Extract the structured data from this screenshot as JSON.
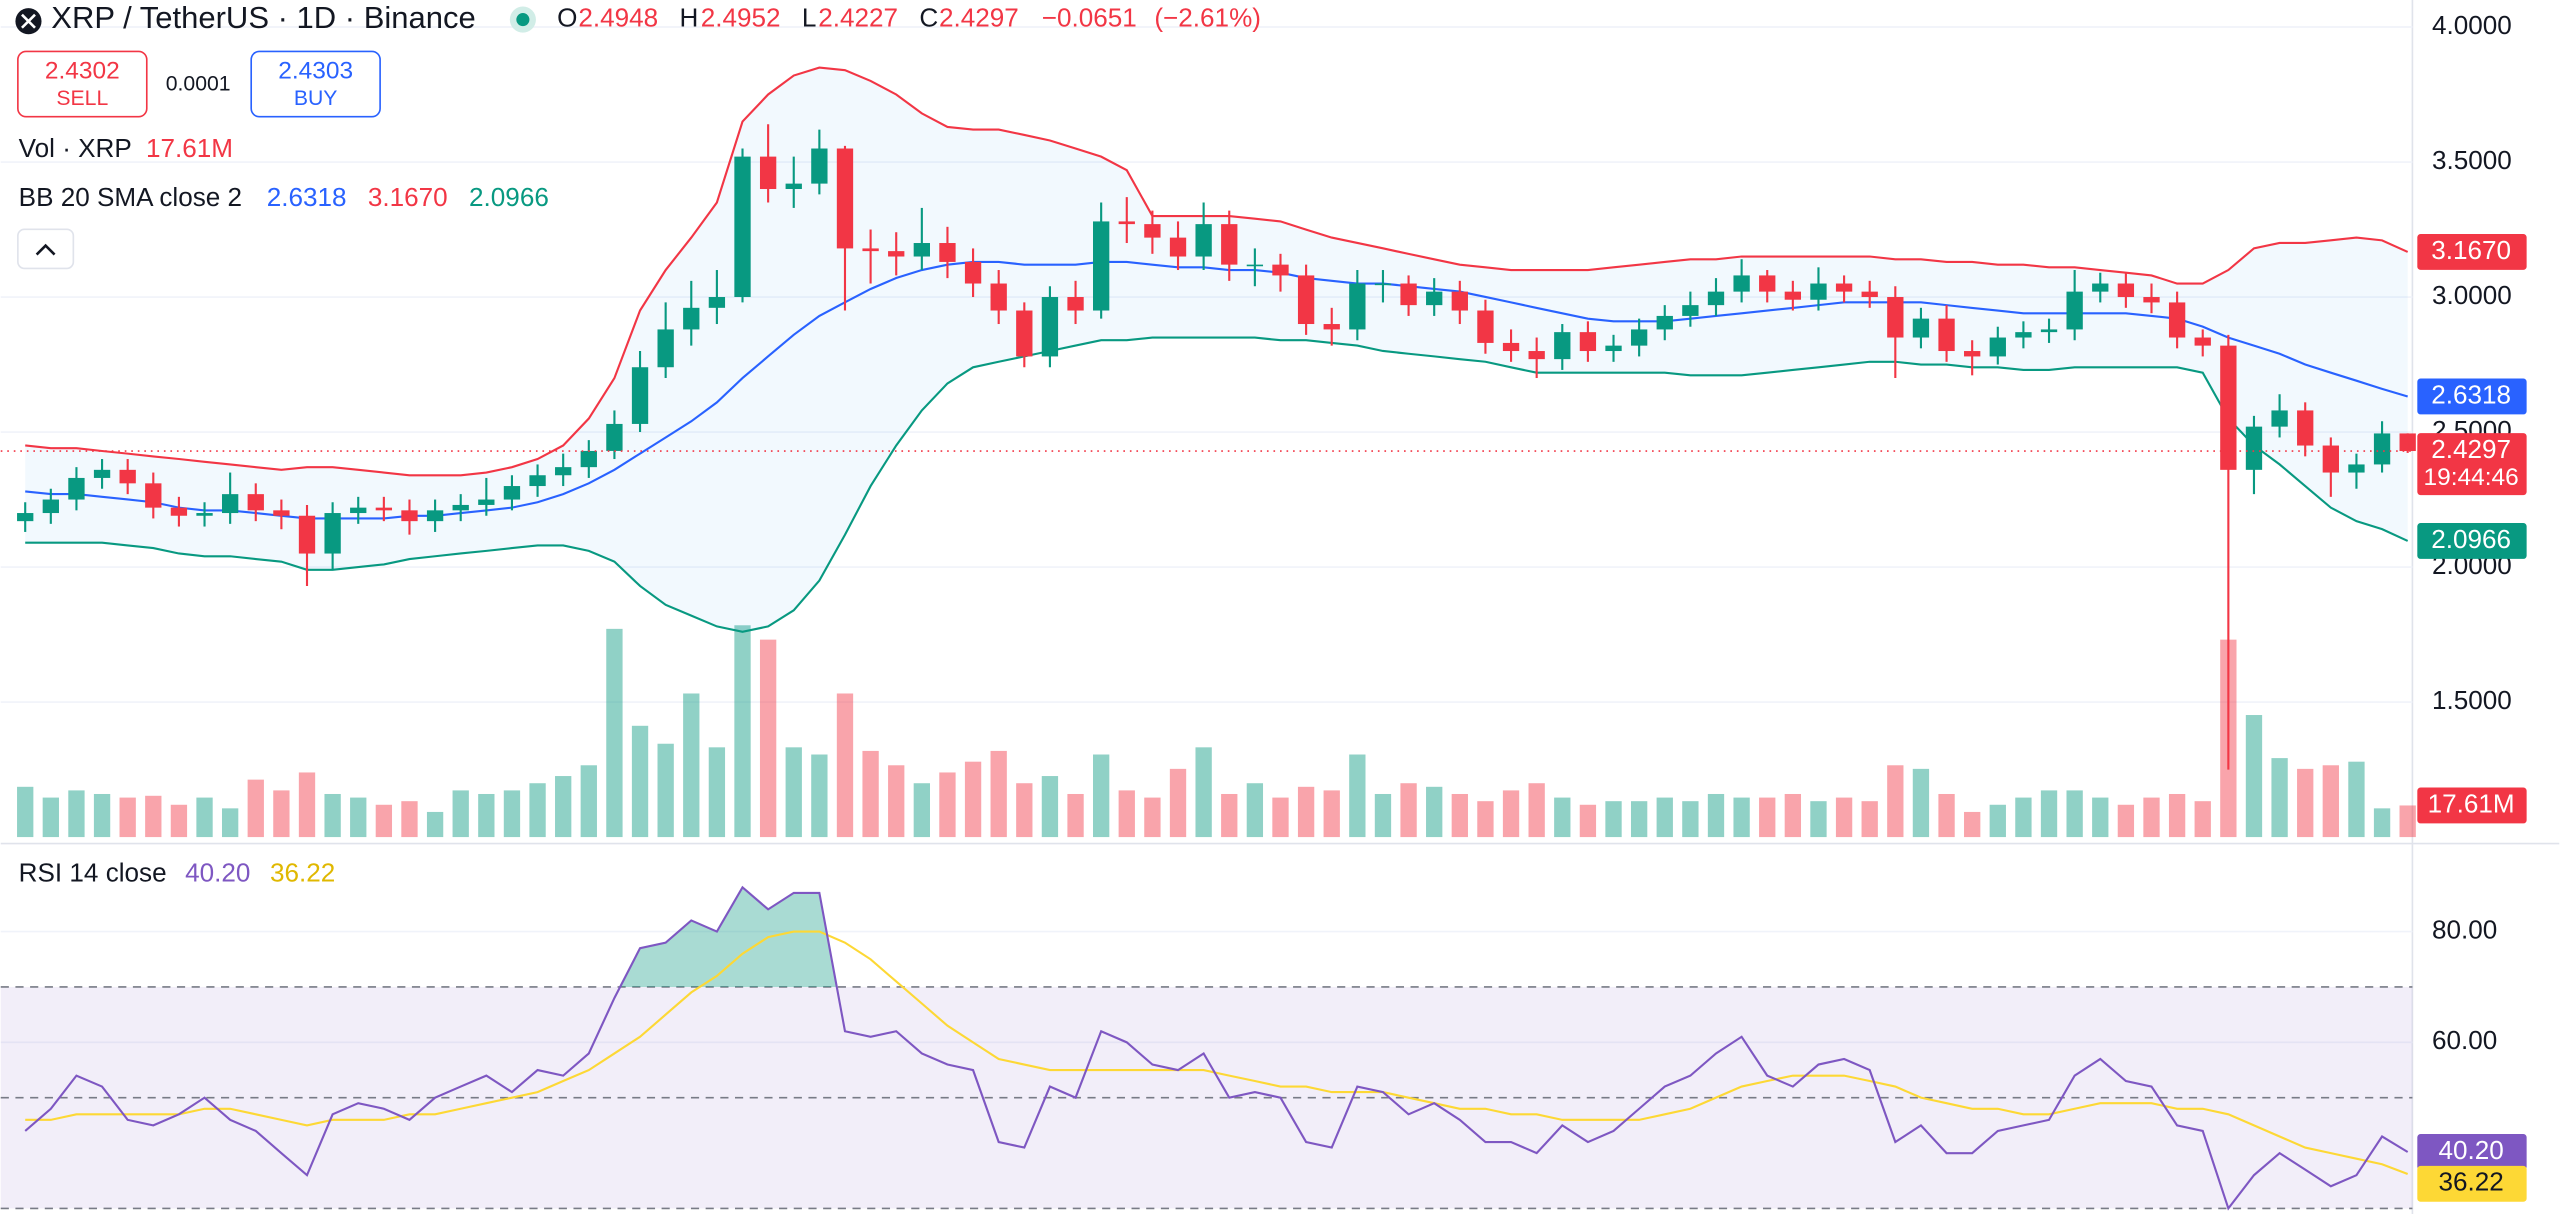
{
  "chart_data": {
    "type": "candlestick",
    "title": "XRP / TetherUS · 1D · Binance",
    "ohlc_labels": [
      "O",
      "H",
      "L",
      "C"
    ],
    "ohlc_values": [
      2.4948,
      2.4952,
      2.4227,
      2.4297
    ],
    "change": {
      "value": -0.0651,
      "label": "−0.0651"
    },
    "change_pct": {
      "value": -2.61,
      "label": "(−2.61%)"
    },
    "sell": {
      "price": 2.4302,
      "label": "SELL"
    },
    "spread": 0.0001,
    "buy": {
      "price": 2.4303,
      "label": "BUY"
    },
    "countdown": "19:44:46",
    "up_color": "#089981",
    "down_color": "#f23645",
    "ylim": [
      1.0,
      4.1
    ],
    "yticks": [
      {
        "value": 4,
        "label": "4.0000"
      },
      {
        "value": 3.5,
        "label": "3.5000"
      },
      {
        "value": 3,
        "label": "3.0000"
      },
      {
        "value": 2.5,
        "label": "2.5000"
      },
      {
        "value": 2,
        "label": "2.0000"
      },
      {
        "value": 1.5,
        "label": "1.5000"
      }
    ],
    "grid": true,
    "open": [
      2.17,
      2.2,
      2.25,
      2.33,
      2.36,
      2.31,
      2.22,
      2.19,
      2.2,
      2.27,
      2.21,
      2.19,
      2.05,
      2.2,
      2.22,
      2.21,
      2.17,
      2.21,
      2.23,
      2.25,
      2.3,
      2.34,
      2.37,
      2.43,
      2.53,
      2.74,
      2.88,
      2.96,
      3.0,
      3.52,
      3.4,
      3.42,
      3.55,
      3.18,
      3.17,
      3.15,
      3.2,
      3.13,
      3.05,
      2.95,
      2.78,
      3.0,
      2.95,
      3.28,
      3.27,
      3.22,
      3.15,
      3.27,
      3.12,
      3.12,
      3.08,
      2.9,
      2.88,
      3.05,
      3.05,
      2.97,
      3.02,
      2.95,
      2.83,
      2.8,
      2.77,
      2.87,
      2.8,
      2.82,
      2.88,
      2.93,
      2.97,
      3.02,
      3.08,
      3.02,
      2.99,
      3.05,
      3.02,
      3.0,
      2.85,
      2.92,
      2.8,
      2.78,
      2.85,
      2.87,
      2.88,
      3.02,
      3.05,
      3.0,
      2.98,
      2.85,
      2.82,
      2.36,
      2.52,
      2.58,
      2.45,
      2.35,
      2.38,
      2.4948
    ],
    "high": [
      2.24,
      2.29,
      2.37,
      2.4,
      2.4,
      2.35,
      2.26,
      2.24,
      2.35,
      2.31,
      2.25,
      2.23,
      2.24,
      2.26,
      2.26,
      2.25,
      2.25,
      2.27,
      2.33,
      2.34,
      2.38,
      2.42,
      2.47,
      2.58,
      2.8,
      2.98,
      3.06,
      3.1,
      3.55,
      3.64,
      3.52,
      3.62,
      3.56,
      3.25,
      3.24,
      3.33,
      3.26,
      3.18,
      3.1,
      2.98,
      3.04,
      3.06,
      3.35,
      3.37,
      3.32,
      3.28,
      3.35,
      3.32,
      3.18,
      3.16,
      3.12,
      2.96,
      3.1,
      3.1,
      3.08,
      3.07,
      3.06,
      2.99,
      2.88,
      2.85,
      2.9,
      2.91,
      2.86,
      2.92,
      2.97,
      3.02,
      3.07,
      3.14,
      3.1,
      3.06,
      3.11,
      3.08,
      3.06,
      3.04,
      2.96,
      2.97,
      2.84,
      2.89,
      2.91,
      2.92,
      3.1,
      3.09,
      3.09,
      3.05,
      3.02,
      2.88,
      2.86,
      2.56,
      2.64,
      2.61,
      2.48,
      2.42,
      2.54,
      2.4952
    ],
    "low": [
      2.13,
      2.16,
      2.21,
      2.29,
      2.27,
      2.18,
      2.15,
      2.15,
      2.16,
      2.17,
      2.14,
      1.93,
      1.99,
      2.16,
      2.17,
      2.12,
      2.13,
      2.17,
      2.19,
      2.21,
      2.26,
      2.3,
      2.33,
      2.4,
      2.5,
      2.7,
      2.82,
      2.9,
      2.98,
      3.35,
      3.33,
      3.38,
      2.95,
      3.05,
      3.08,
      3.1,
      3.07,
      3.0,
      2.9,
      2.74,
      2.74,
      2.9,
      2.92,
      3.2,
      3.16,
      3.1,
      3.1,
      3.06,
      3.04,
      3.02,
      2.86,
      2.82,
      2.84,
      2.98,
      2.93,
      2.93,
      2.9,
      2.79,
      2.76,
      2.7,
      2.73,
      2.76,
      2.76,
      2.78,
      2.84,
      2.89,
      2.93,
      2.98,
      2.98,
      2.95,
      2.95,
      2.98,
      2.96,
      2.7,
      2.81,
      2.76,
      2.71,
      2.75,
      2.81,
      2.83,
      2.84,
      2.98,
      2.96,
      2.94,
      2.81,
      2.78,
      1.25,
      2.27,
      2.48,
      2.41,
      2.26,
      2.29,
      2.35,
      2.4227
    ],
    "close": [
      2.2,
      2.25,
      2.33,
      2.36,
      2.31,
      2.22,
      2.19,
      2.2,
      2.27,
      2.21,
      2.19,
      2.05,
      2.2,
      2.22,
      2.21,
      2.17,
      2.21,
      2.23,
      2.25,
      2.3,
      2.34,
      2.37,
      2.43,
      2.53,
      2.74,
      2.88,
      2.96,
      3.0,
      3.52,
      3.4,
      3.42,
      3.55,
      3.18,
      3.17,
      3.15,
      3.2,
      3.13,
      3.05,
      2.95,
      2.78,
      3.0,
      2.95,
      3.28,
      3.27,
      3.22,
      3.15,
      3.27,
      3.12,
      3.12,
      3.08,
      2.9,
      2.88,
      3.05,
      3.05,
      2.97,
      3.02,
      2.95,
      2.83,
      2.8,
      2.77,
      2.87,
      2.8,
      2.82,
      2.88,
      2.93,
      2.97,
      3.02,
      3.08,
      3.02,
      2.99,
      3.05,
      3.02,
      3.0,
      2.85,
      2.92,
      2.8,
      2.78,
      2.85,
      2.87,
      2.88,
      3.02,
      3.05,
      3.0,
      2.98,
      2.85,
      2.82,
      2.36,
      2.52,
      2.58,
      2.45,
      2.35,
      2.38,
      2.4948,
      2.4297
    ],
    "volume": {
      "label": "Vol · XRP",
      "legend_value": {
        "value": 17.61,
        "label": "17.61M"
      },
      "vlim": [
        0,
        120
      ],
      "values": [
        28,
        22,
        26,
        24,
        22,
        23,
        18,
        22,
        16,
        32,
        26,
        36,
        24,
        22,
        18,
        20,
        14,
        26,
        24,
        26,
        30,
        34,
        40,
        116,
        62,
        52,
        80,
        50,
        118,
        110,
        50,
        46,
        80,
        48,
        40,
        30,
        36,
        42,
        48,
        30,
        34,
        24,
        46,
        26,
        22,
        38,
        50,
        24,
        30,
        22,
        28,
        26,
        46,
        24,
        30,
        28,
        24,
        20,
        26,
        30,
        22,
        18,
        20,
        20,
        22,
        20,
        24,
        22,
        22,
        24,
        20,
        22,
        20,
        40,
        38,
        24,
        14,
        18,
        22,
        26,
        26,
        22,
        18,
        22,
        24,
        20,
        110,
        68,
        44,
        38,
        40,
        42,
        16,
        17.61
      ]
    },
    "bb": {
      "label": "BB 20 SMA close 2",
      "fill": "rgba(33,150,243,0.06)",
      "legend_values": [
        2.6318,
        {
          "value": 3.167,
          "label": "3.1670"
        },
        2.0966
      ],
      "colors": [
        "#2962ff",
        "#f23645",
        "#089981"
      ],
      "middle": [
        2.28,
        2.27,
        2.27,
        2.26,
        2.25,
        2.24,
        2.22,
        2.21,
        2.21,
        2.2,
        2.19,
        2.18,
        2.18,
        2.18,
        2.18,
        2.19,
        2.19,
        2.2,
        2.21,
        2.22,
        2.24,
        2.27,
        2.31,
        2.36,
        2.42,
        2.48,
        2.54,
        2.61,
        2.7,
        2.78,
        2.86,
        2.93,
        2.98,
        3.03,
        3.07,
        3.1,
        3.12,
        3.13,
        3.13,
        3.12,
        3.12,
        3.12,
        3.13,
        3.13,
        3.12,
        3.11,
        3.11,
        3.1,
        3.1,
        3.09,
        3.07,
        3.06,
        3.05,
        3.05,
        3.04,
        3.03,
        3.02,
        3.0,
        2.98,
        2.96,
        2.94,
        2.92,
        2.91,
        2.91,
        2.91,
        2.92,
        2.93,
        2.94,
        2.95,
        2.96,
        2.97,
        2.98,
        2.98,
        2.98,
        2.98,
        2.97,
        2.96,
        2.95,
        2.94,
        2.94,
        2.94,
        2.94,
        2.94,
        2.93,
        2.92,
        2.89,
        2.85,
        2.82,
        2.79,
        2.75,
        2.72,
        2.69,
        2.66,
        2.6318
      ],
      "upper": [
        2.45,
        2.44,
        2.44,
        2.43,
        2.42,
        2.41,
        2.4,
        2.39,
        2.38,
        2.37,
        2.36,
        2.37,
        2.37,
        2.36,
        2.35,
        2.34,
        2.34,
        2.34,
        2.35,
        2.37,
        2.4,
        2.45,
        2.55,
        2.7,
        2.95,
        3.1,
        3.22,
        3.35,
        3.65,
        3.75,
        3.82,
        3.85,
        3.84,
        3.8,
        3.75,
        3.68,
        3.63,
        3.62,
        3.62,
        3.6,
        3.58,
        3.55,
        3.52,
        3.47,
        3.3,
        3.3,
        3.3,
        3.3,
        3.29,
        3.28,
        3.25,
        3.22,
        3.2,
        3.18,
        3.16,
        3.14,
        3.12,
        3.11,
        3.1,
        3.1,
        3.1,
        3.1,
        3.11,
        3.12,
        3.13,
        3.14,
        3.14,
        3.15,
        3.15,
        3.15,
        3.15,
        3.15,
        3.15,
        3.14,
        3.14,
        3.13,
        3.13,
        3.12,
        3.12,
        3.11,
        3.11,
        3.1,
        3.09,
        3.08,
        3.05,
        3.05,
        3.1,
        3.18,
        3.2,
        3.2,
        3.21,
        3.22,
        3.21,
        3.167
      ],
      "lower": [
        2.09,
        2.09,
        2.09,
        2.09,
        2.08,
        2.07,
        2.05,
        2.04,
        2.04,
        2.03,
        2.02,
        1.99,
        1.99,
        2.0,
        2.01,
        2.03,
        2.04,
        2.05,
        2.06,
        2.07,
        2.08,
        2.08,
        2.06,
        2.02,
        1.93,
        1.86,
        1.82,
        1.78,
        1.76,
        1.78,
        1.84,
        1.95,
        2.12,
        2.3,
        2.45,
        2.58,
        2.68,
        2.74,
        2.76,
        2.78,
        2.8,
        2.82,
        2.84,
        2.84,
        2.85,
        2.85,
        2.85,
        2.85,
        2.85,
        2.84,
        2.84,
        2.83,
        2.82,
        2.8,
        2.79,
        2.78,
        2.77,
        2.76,
        2.74,
        2.72,
        2.72,
        2.72,
        2.72,
        2.72,
        2.72,
        2.71,
        2.71,
        2.71,
        2.72,
        2.73,
        2.74,
        2.75,
        2.76,
        2.76,
        2.75,
        2.75,
        2.74,
        2.74,
        2.73,
        2.73,
        2.74,
        2.74,
        2.74,
        2.74,
        2.74,
        2.72,
        2.55,
        2.45,
        2.38,
        2.3,
        2.22,
        2.17,
        2.14,
        2.0966
      ]
    },
    "rsi": {
      "label": "RSI 14 close",
      "legend_values": [
        {
          "value": 40.2,
          "label": "40.20"
        },
        36.22
      ],
      "colors": [
        "#7e57c2",
        "#fdd835"
      ],
      "ylim": [
        29,
        95
      ],
      "yticks": [
        {
          "value": 80,
          "label": "80.00"
        },
        {
          "value": 60,
          "label": "60.00"
        }
      ],
      "band": [
        30,
        70
      ],
      "levels": [
        70,
        50,
        30
      ],
      "values": [
        44,
        48,
        54,
        52,
        46,
        45,
        47,
        50,
        46,
        44,
        40,
        36,
        47,
        49,
        48,
        46,
        50,
        52,
        54,
        51,
        55,
        54,
        58,
        68,
        77,
        78,
        82,
        80,
        88,
        84,
        87,
        87,
        62,
        61,
        62,
        58,
        56,
        55,
        42,
        41,
        52,
        50,
        62,
        60,
        56,
        55,
        58,
        50,
        51,
        50,
        42,
        41,
        52,
        51,
        47,
        49,
        46,
        42,
        42,
        40,
        45,
        42,
        44,
        48,
        52,
        54,
        58,
        61,
        54,
        52,
        56,
        57,
        55,
        42,
        45,
        40,
        40,
        44,
        45,
        46,
        54,
        57,
        53,
        52,
        45,
        44,
        30,
        36,
        40,
        37,
        34,
        36,
        43,
        40.2
      ],
      "ma": [
        46,
        46,
        47,
        47,
        47,
        47,
        47,
        48,
        48,
        47,
        46,
        45,
        46,
        46,
        46,
        47,
        47,
        48,
        49,
        50,
        51,
        53,
        55,
        58,
        61,
        65,
        69,
        72,
        76,
        79,
        80,
        80,
        78,
        75,
        71,
        67,
        63,
        60,
        57,
        56,
        55,
        55,
        55,
        55,
        55,
        55,
        55,
        54,
        53,
        52,
        52,
        51,
        51,
        51,
        50,
        49,
        48,
        48,
        47,
        47,
        46,
        46,
        46,
        46,
        47,
        48,
        50,
        52,
        53,
        54,
        54,
        54,
        53,
        52,
        50,
        49,
        48,
        48,
        47,
        47,
        48,
        49,
        49,
        49,
        48,
        48,
        47,
        45,
        43,
        41,
        40,
        39,
        38,
        36.22
      ]
    }
  }
}
